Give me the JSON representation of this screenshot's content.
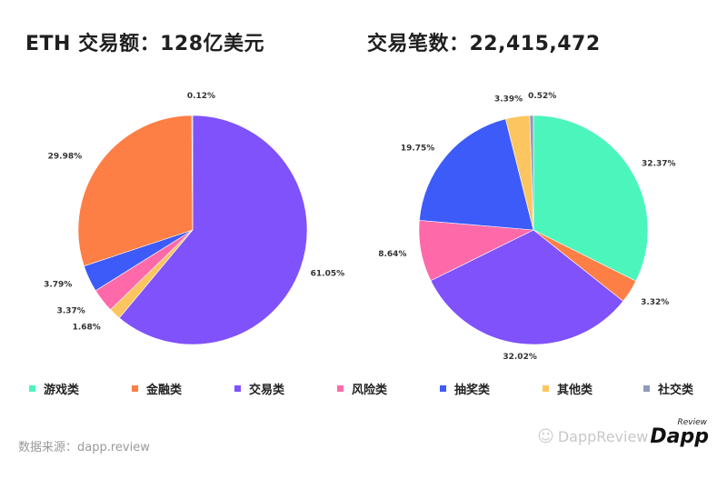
{
  "titles": {
    "left": "ETH 交易额：128亿美元",
    "right": "交易笔数：22,415,472"
  },
  "legend": [
    {
      "label": "游戏类",
      "color": "#4cf5bc"
    },
    {
      "label": "金融类",
      "color": "#fe7f45"
    },
    {
      "label": "交易类",
      "color": "#7f52fb"
    },
    {
      "label": "风险类",
      "color": "#fe6aa9"
    },
    {
      "label": "抽奖类",
      "color": "#3d5bf9"
    },
    {
      "label": "其他类",
      "color": "#fdc55f"
    },
    {
      "label": "社交类",
      "color": "#8e9bbd"
    }
  ],
  "source": "数据来源：dapp.review",
  "watermark": {
    "text": "DappReview",
    "logo": "Dapp",
    "logo_sup": "Review"
  },
  "chart_data": [
    {
      "type": "pie",
      "title": "ETH 交易额：128亿美元",
      "start": "12 o'clock, clockwise",
      "slices": [
        {
          "category": "交易类",
          "value": 61.05,
          "label": "61.05%",
          "color": "#7f52fb"
        },
        {
          "category": "其他类",
          "value": 1.68,
          "label": "1.68%",
          "color": "#fdc55f"
        },
        {
          "category": "风险类",
          "value": 3.37,
          "label": "3.37%",
          "color": "#fe6aa9"
        },
        {
          "category": "抽奖类",
          "value": 3.79,
          "label": "3.79%",
          "color": "#3d5bf9"
        },
        {
          "category": "金融类",
          "value": 29.98,
          "label": "29.98%",
          "color": "#fe7f45"
        },
        {
          "category": "社交类",
          "value": 0.12,
          "label": "0.12%",
          "color": "#8e9bbd"
        }
      ]
    },
    {
      "type": "pie",
      "title": "交易笔数：22,415,472",
      "start": "12 o'clock, clockwise",
      "slices": [
        {
          "category": "游戏类",
          "value": 32.37,
          "label": "32.37%",
          "color": "#4cf5bc"
        },
        {
          "category": "金融类",
          "value": 3.32,
          "label": "3.32%",
          "color": "#fe7f45"
        },
        {
          "category": "交易类",
          "value": 32.02,
          "label": "32.02%",
          "color": "#7f52fb"
        },
        {
          "category": "风险类",
          "value": 8.64,
          "label": "8.64%",
          "color": "#fe6aa9"
        },
        {
          "category": "抽奖类",
          "value": 19.75,
          "label": "19.75%",
          "color": "#3d5bf9"
        },
        {
          "category": "其他类",
          "value": 3.39,
          "label": "3.39%",
          "color": "#fdc55f"
        },
        {
          "category": "社交类",
          "value": 0.52,
          "label": "0.52%",
          "color": "#8e9bbd"
        }
      ]
    }
  ]
}
